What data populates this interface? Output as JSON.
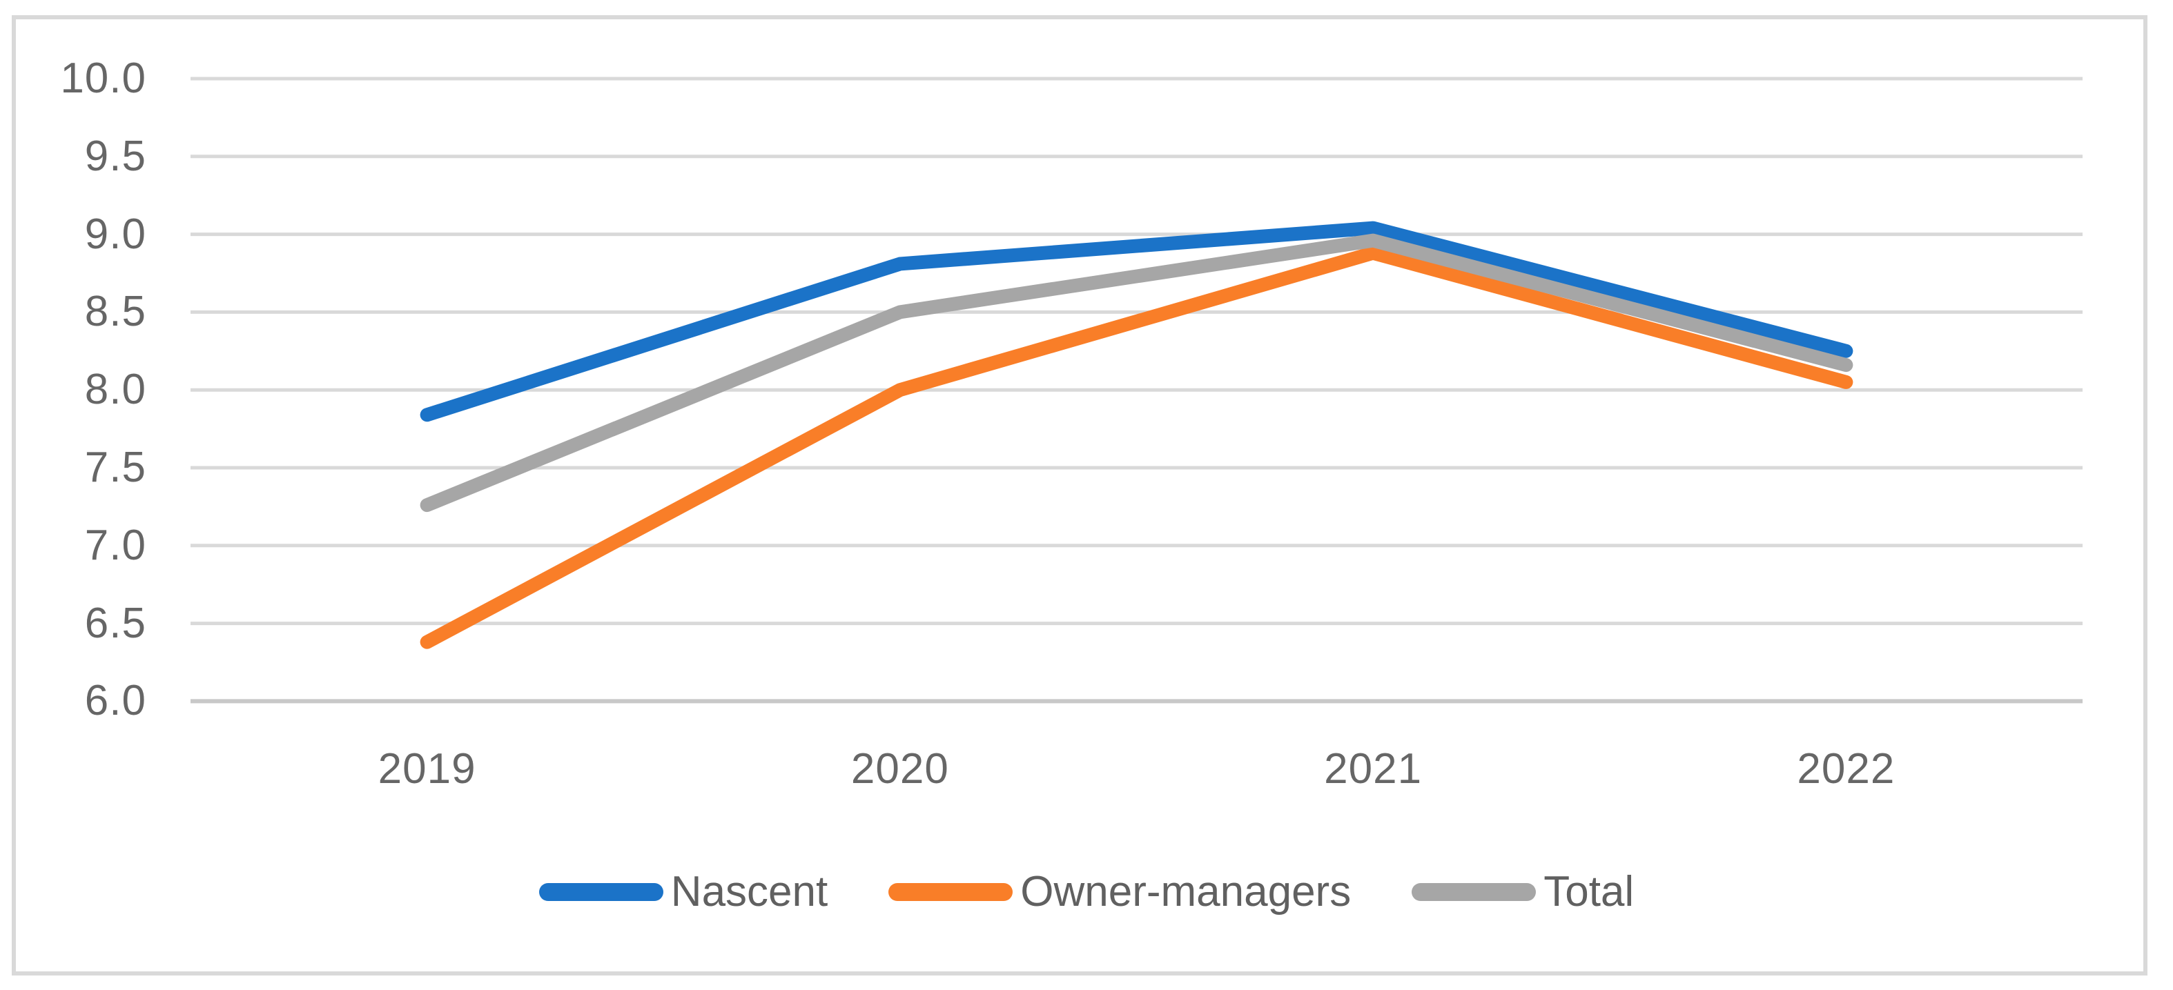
{
  "chart_data": {
    "type": "line",
    "title": "",
    "xlabel": "",
    "ylabel": "",
    "categories": [
      "2019",
      "2020",
      "2021",
      "2022"
    ],
    "series": [
      {
        "name": "Nascent",
        "color": "#1B73C8",
        "values": [
          7.84,
          8.81,
          9.04,
          8.25
        ]
      },
      {
        "name": "Owner-managers",
        "color": "#F97E28",
        "values": [
          6.38,
          8.0,
          8.88,
          8.05
        ]
      },
      {
        "name": "Total",
        "color": "#A6A6A6",
        "values": [
          7.26,
          8.5,
          8.96,
          8.16
        ]
      }
    ],
    "ylim": [
      6.0,
      10.0
    ],
    "y_ticks": [
      10.0,
      9.5,
      9.0,
      8.5,
      8.0,
      7.5,
      7.0,
      6.5,
      6.0
    ],
    "y_tick_labels": [
      "10.0",
      "9.5",
      "9.0",
      "8.5",
      "8.0",
      "7.5",
      "7.0",
      "6.5",
      "6.0"
    ],
    "grid": "horizontal",
    "legend_position": "bottom",
    "legend_labels": [
      "Nascent",
      "Owner-managers",
      "Total"
    ]
  },
  "styles": {
    "background_color": "#FFFFFF",
    "frame_border_color": "#D9D9D9",
    "gridline_color": "#D9D9D9",
    "axis_line_color": "#C8C8C8",
    "tick_label_color": "#666666",
    "legend_label_color": "#606060"
  }
}
